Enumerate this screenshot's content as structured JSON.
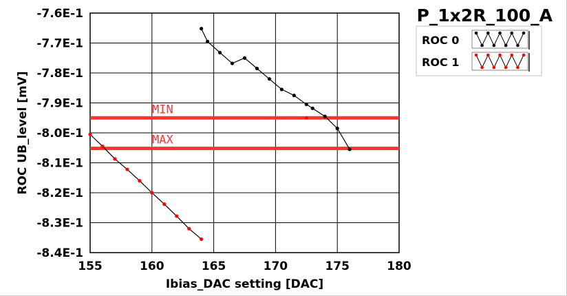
{
  "chart_data": {
    "type": "line",
    "title": "P_1x2R_100_A",
    "xlabel": "Ibias_DAC setting [DAC]",
    "ylabel": "ROC UB_level [mV]",
    "xlim": [
      155,
      180
    ],
    "ylim": [
      -0.84,
      -0.76
    ],
    "xticks": [
      155,
      160,
      165,
      170,
      175,
      180
    ],
    "xtick_labels": [
      "155",
      "160",
      "165",
      "170",
      "175",
      "180"
    ],
    "yticks": [
      -0.76,
      -0.77,
      -0.78,
      -0.79,
      -0.8,
      -0.81,
      -0.82,
      -0.83,
      -0.84
    ],
    "ytick_labels": [
      "-7.6E-1",
      "-7.7E-1",
      "-7.8E-1",
      "-7.9E-1",
      "-8.0E-1",
      "-8.1E-1",
      "-8.2E-1",
      "-8.3E-1",
      "-8.4E-1"
    ],
    "grid": true,
    "legend_position": "top-right",
    "series": [
      {
        "name": "ROC 0",
        "color": "#000000",
        "x": [
          164,
          164.5,
          165.5,
          166.5,
          167.5,
          168.5,
          169.5,
          170.5,
          171.5,
          172.5,
          173,
          174,
          175,
          176
        ],
        "y": [
          -0.7652,
          -0.7695,
          -0.7732,
          -0.7768,
          -0.775,
          -0.7785,
          -0.782,
          -0.7855,
          -0.7875,
          -0.7905,
          -0.7918,
          -0.7945,
          -0.7985,
          -0.8055
        ]
      },
      {
        "name": "ROC 1",
        "color": "#ff0000",
        "x": [
          155,
          156,
          157,
          158,
          159,
          160,
          161,
          162,
          163,
          164
        ],
        "y": [
          -0.8005,
          -0.8045,
          -0.8087,
          -0.8122,
          -0.816,
          -0.82,
          -0.8238,
          -0.8278,
          -0.832,
          -0.8355
        ]
      }
    ],
    "limits": [
      {
        "label": "MIN",
        "value": -0.795,
        "color": "#ff3333"
      },
      {
        "label": "MAX",
        "value": -0.8052,
        "color": "#ff3333"
      }
    ],
    "limit_markers": [
      {
        "x": 172.5,
        "y": -0.795,
        "color": "#ff0000"
      }
    ]
  }
}
